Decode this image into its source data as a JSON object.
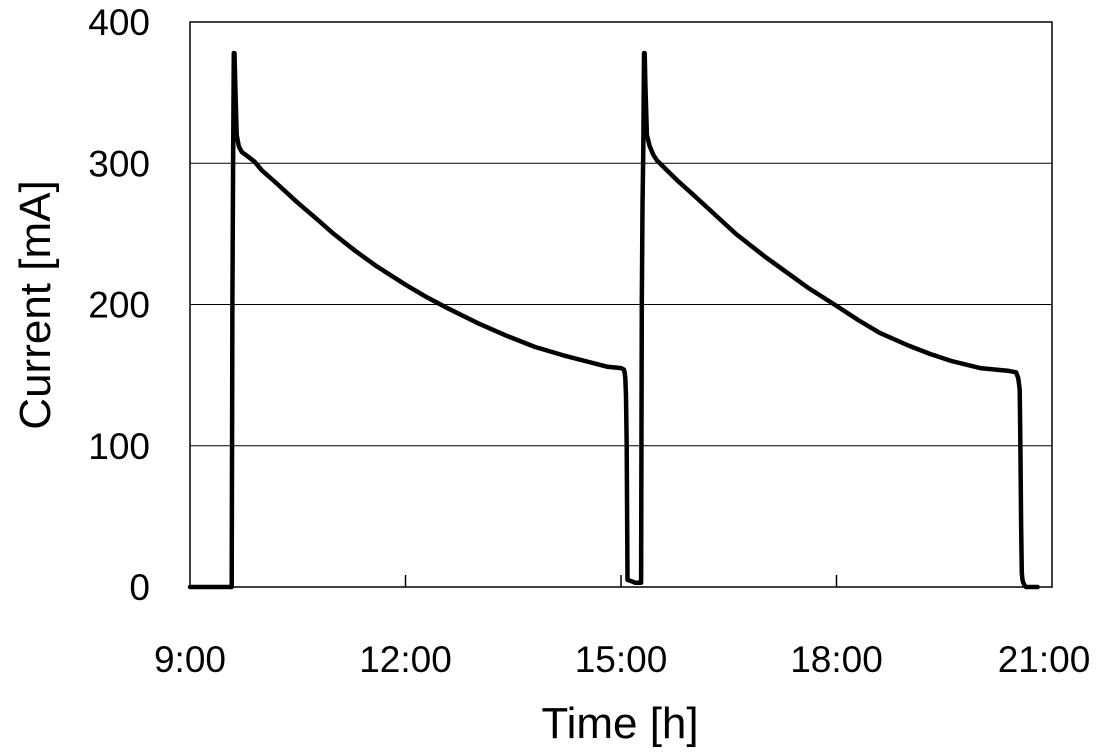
{
  "chart_data": {
    "type": "line",
    "title": "",
    "xlabel": "Time [h]",
    "ylabel": "Current [mA]",
    "xlim": [
      9.0,
      21.0
    ],
    "ylim": [
      0,
      400
    ],
    "x_ticks": [
      9,
      12,
      15,
      18,
      21
    ],
    "x_tick_labels": [
      "9:00",
      "12:00",
      "15:00",
      "18:00",
      "21:00"
    ],
    "y_ticks": [
      0,
      100,
      200,
      300,
      400
    ],
    "y_tick_labels": [
      "0",
      "100",
      "200",
      "300",
      "400"
    ],
    "grid": "horizontal",
    "legend": "none",
    "line_color": "#000000",
    "series": [
      {
        "x": [
          9.0,
          9.58,
          9.59,
          9.6,
          9.61,
          9.62,
          9.63,
          9.65,
          9.68,
          9.72,
          9.8,
          9.9,
          10.0,
          10.2,
          10.5,
          10.8,
          11.0,
          11.3,
          11.6,
          12.0,
          12.3,
          12.6,
          13.0,
          13.4,
          13.8,
          14.2,
          14.5,
          14.8,
          15.0,
          15.04,
          15.05,
          15.06,
          15.07,
          15.08,
          15.09,
          15.1,
          15.2,
          15.28,
          15.29,
          15.3,
          15.31,
          15.32,
          15.33,
          15.34,
          15.36,
          15.4,
          15.45,
          15.5,
          15.6,
          15.8,
          16.0,
          16.3,
          16.6,
          17.0,
          17.3,
          17.6,
          18.0,
          18.3,
          18.6,
          19.0,
          19.3,
          19.6,
          20.0,
          20.2,
          20.4,
          20.5,
          20.53,
          20.55,
          20.56,
          20.57,
          20.58,
          20.59,
          20.6,
          20.62,
          20.64,
          20.7,
          20.8
        ],
        "y": [
          0,
          0,
          200,
          300,
          378,
          378,
          355,
          320,
          312,
          308,
          305,
          301,
          295,
          286,
          272,
          259,
          250,
          238,
          227,
          214,
          205,
          197,
          187,
          178,
          170,
          164,
          160,
          156,
          155,
          154,
          152,
          148,
          135,
          100,
          5,
          5,
          3,
          3,
          200,
          270,
          310,
          378,
          378,
          355,
          320,
          312,
          306,
          302,
          297,
          287,
          278,
          264,
          250,
          234,
          223,
          212,
          199,
          189,
          180,
          171,
          165,
          160,
          155,
          154,
          153,
          152,
          148,
          140,
          100,
          45,
          10,
          5,
          3,
          1,
          0,
          0,
          0
        ]
      }
    ]
  }
}
